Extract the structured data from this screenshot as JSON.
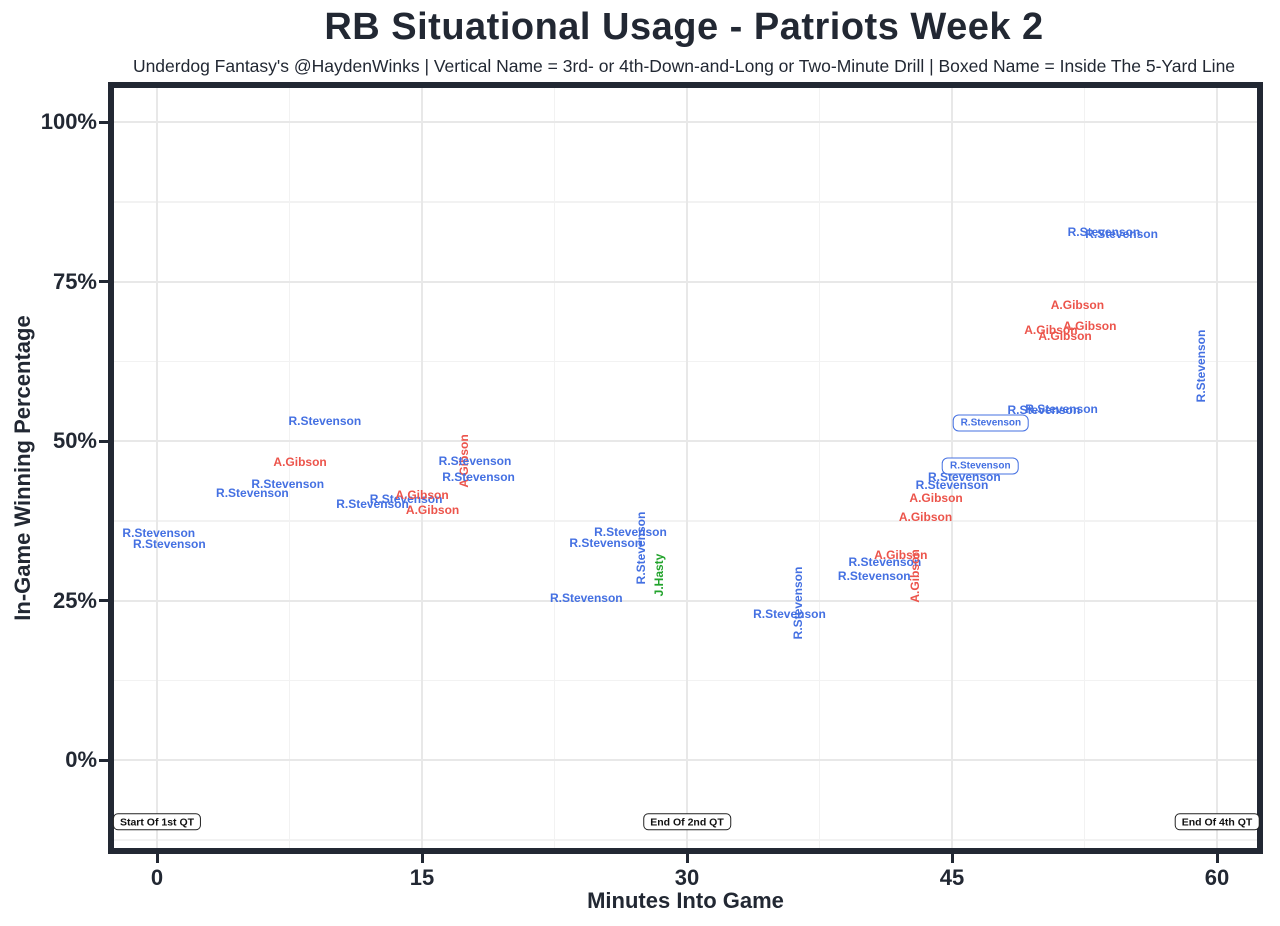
{
  "chart_data": {
    "type": "scatter",
    "title": "RB Situational Usage - Patriots Week 2",
    "subtitle": "Underdog Fantasy's @HaydenWinks | Vertical Name = 3rd- or 4th-Down-and-Long or Two-Minute Drill | Boxed Name = Inside The 5-Yard Line",
    "xlabel": "Minutes Into Game",
    "ylabel": "In-Game Winning Percentage",
    "legend_notes": {
      "vertical_name": "3rd- or 4th-Down-and-Long or Two-Minute Drill",
      "boxed_name": "Inside The 5-Yard Line"
    },
    "x_ticks": [
      {
        "v": 0,
        "label": "0"
      },
      {
        "v": 15,
        "label": "15"
      },
      {
        "v": 30,
        "label": "30"
      },
      {
        "v": 45,
        "label": "45"
      },
      {
        "v": 60,
        "label": "60"
      }
    ],
    "y_ticks": [
      {
        "v": 0,
        "label": "0%"
      },
      {
        "v": 25,
        "label": "25%"
      },
      {
        "v": 50,
        "label": "50%"
      },
      {
        "v": 75,
        "label": "75%"
      },
      {
        "v": 100,
        "label": "100%"
      }
    ],
    "x_minor": [
      7.5,
      22.5,
      37.5,
      52.5
    ],
    "y_minor": [
      -12.5,
      12.5,
      37.5,
      62.5,
      87.5
    ],
    "xlim": [
      -2.4,
      62.3
    ],
    "ylim": [
      -13.8,
      105.3
    ],
    "grid": true,
    "colors": {
      "blue": "#4470E2",
      "red": "#EC544B",
      "green": "#21A32B",
      "dark": "#222833"
    },
    "points": [
      {
        "name": "R.Stevenson",
        "x": 0.1,
        "y": 35.6,
        "color": "blue",
        "style": "h"
      },
      {
        "name": "R.Stevenson",
        "x": 0.7,
        "y": 33.8,
        "color": "blue",
        "style": "h"
      },
      {
        "name": "R.Stevenson",
        "x": 9.5,
        "y": 53.1,
        "color": "blue",
        "style": "h"
      },
      {
        "name": "R.Stevenson",
        "x": 7.4,
        "y": 43.3,
        "color": "blue",
        "style": "h"
      },
      {
        "name": "R.Stevenson",
        "x": 5.4,
        "y": 41.8,
        "color": "blue",
        "style": "h"
      },
      {
        "name": "A.Gibson",
        "x": 8.1,
        "y": 46.7,
        "color": "red",
        "style": "h"
      },
      {
        "name": "R.Stevenson",
        "x": 12.2,
        "y": 40.1,
        "color": "blue",
        "style": "h"
      },
      {
        "name": "R.Stevenson",
        "x": 14.1,
        "y": 40.9,
        "color": "blue",
        "style": "h"
      },
      {
        "name": "A.Gibson",
        "x": 15.0,
        "y": 41.5,
        "color": "red",
        "style": "h"
      },
      {
        "name": "A.Gibson",
        "x": 15.6,
        "y": 39.2,
        "color": "red",
        "style": "h"
      },
      {
        "name": "A.Gibson",
        "x": 17.4,
        "y": 46.9,
        "color": "red",
        "style": "v"
      },
      {
        "name": "R.Stevenson",
        "x": 18.0,
        "y": 46.9,
        "color": "blue",
        "style": "h"
      },
      {
        "name": "R.Stevenson",
        "x": 18.2,
        "y": 44.4,
        "color": "blue",
        "style": "h"
      },
      {
        "name": "R.Stevenson",
        "x": 26.8,
        "y": 35.7,
        "color": "blue",
        "style": "h"
      },
      {
        "name": "R.Stevenson",
        "x": 25.4,
        "y": 34.0,
        "color": "blue",
        "style": "h"
      },
      {
        "name": "R.Stevenson",
        "x": 27.4,
        "y": 33.2,
        "color": "blue",
        "style": "v"
      },
      {
        "name": "J.Hasty",
        "x": 28.4,
        "y": 29.0,
        "color": "green",
        "style": "v"
      },
      {
        "name": "R.Stevenson",
        "x": 24.3,
        "y": 25.4,
        "color": "blue",
        "style": "h"
      },
      {
        "name": "R.Stevenson",
        "x": 36.3,
        "y": 24.6,
        "color": "blue",
        "style": "v"
      },
      {
        "name": "R.Stevenson",
        "x": 35.8,
        "y": 22.9,
        "color": "blue",
        "style": "h"
      },
      {
        "name": "R.Stevenson",
        "x": 41.2,
        "y": 31.1,
        "color": "blue",
        "style": "h"
      },
      {
        "name": "R.Stevenson",
        "x": 40.6,
        "y": 28.9,
        "color": "blue",
        "style": "h"
      },
      {
        "name": "A.Gibson",
        "x": 42.1,
        "y": 32.1,
        "color": "red",
        "style": "h"
      },
      {
        "name": "A.Gibson",
        "x": 42.9,
        "y": 28.8,
        "color": "red",
        "style": "v"
      },
      {
        "name": "A.Gibson",
        "x": 43.5,
        "y": 38.1,
        "color": "red",
        "style": "h"
      },
      {
        "name": "A.Gibson",
        "x": 44.1,
        "y": 41.1,
        "color": "red",
        "style": "h"
      },
      {
        "name": "R.Stevenson",
        "x": 45.0,
        "y": 43.1,
        "color": "blue",
        "style": "h"
      },
      {
        "name": "R.Stevenson",
        "x": 45.7,
        "y": 44.4,
        "color": "blue",
        "style": "h"
      },
      {
        "name": "R.Stevenson",
        "x": 46.6,
        "y": 46.1,
        "color": "blue",
        "style": "box"
      },
      {
        "name": "R.Stevenson",
        "x": 47.2,
        "y": 52.8,
        "color": "blue",
        "style": "box"
      },
      {
        "name": "R.Stevenson",
        "x": 50.2,
        "y": 54.9,
        "color": "blue",
        "style": "h"
      },
      {
        "name": "R.Stevenson",
        "x": 51.2,
        "y": 55.0,
        "color": "blue",
        "style": "h"
      },
      {
        "name": "A.Gibson",
        "x": 50.6,
        "y": 67.4,
        "color": "red",
        "style": "h"
      },
      {
        "name": "A.Gibson",
        "x": 51.4,
        "y": 66.5,
        "color": "red",
        "style": "h"
      },
      {
        "name": "A.Gibson",
        "x": 52.8,
        "y": 68.0,
        "color": "red",
        "style": "h"
      },
      {
        "name": "A.Gibson",
        "x": 52.1,
        "y": 71.3,
        "color": "red",
        "style": "h"
      },
      {
        "name": "R.Stevenson",
        "x": 53.6,
        "y": 82.8,
        "color": "blue",
        "style": "h"
      },
      {
        "name": "R.Stevenson",
        "x": 54.6,
        "y": 82.4,
        "color": "blue",
        "style": "h"
      },
      {
        "name": "R.Stevenson",
        "x": 59.1,
        "y": 61.8,
        "color": "blue",
        "style": "v"
      }
    ],
    "annotations": [
      {
        "text": "Start Of 1st QT",
        "x": 0,
        "y": -9.7
      },
      {
        "text": "End Of 2nd QT",
        "x": 30,
        "y": -9.7
      },
      {
        "text": "End Of 4th QT",
        "x": 60,
        "y": -9.7
      }
    ]
  }
}
